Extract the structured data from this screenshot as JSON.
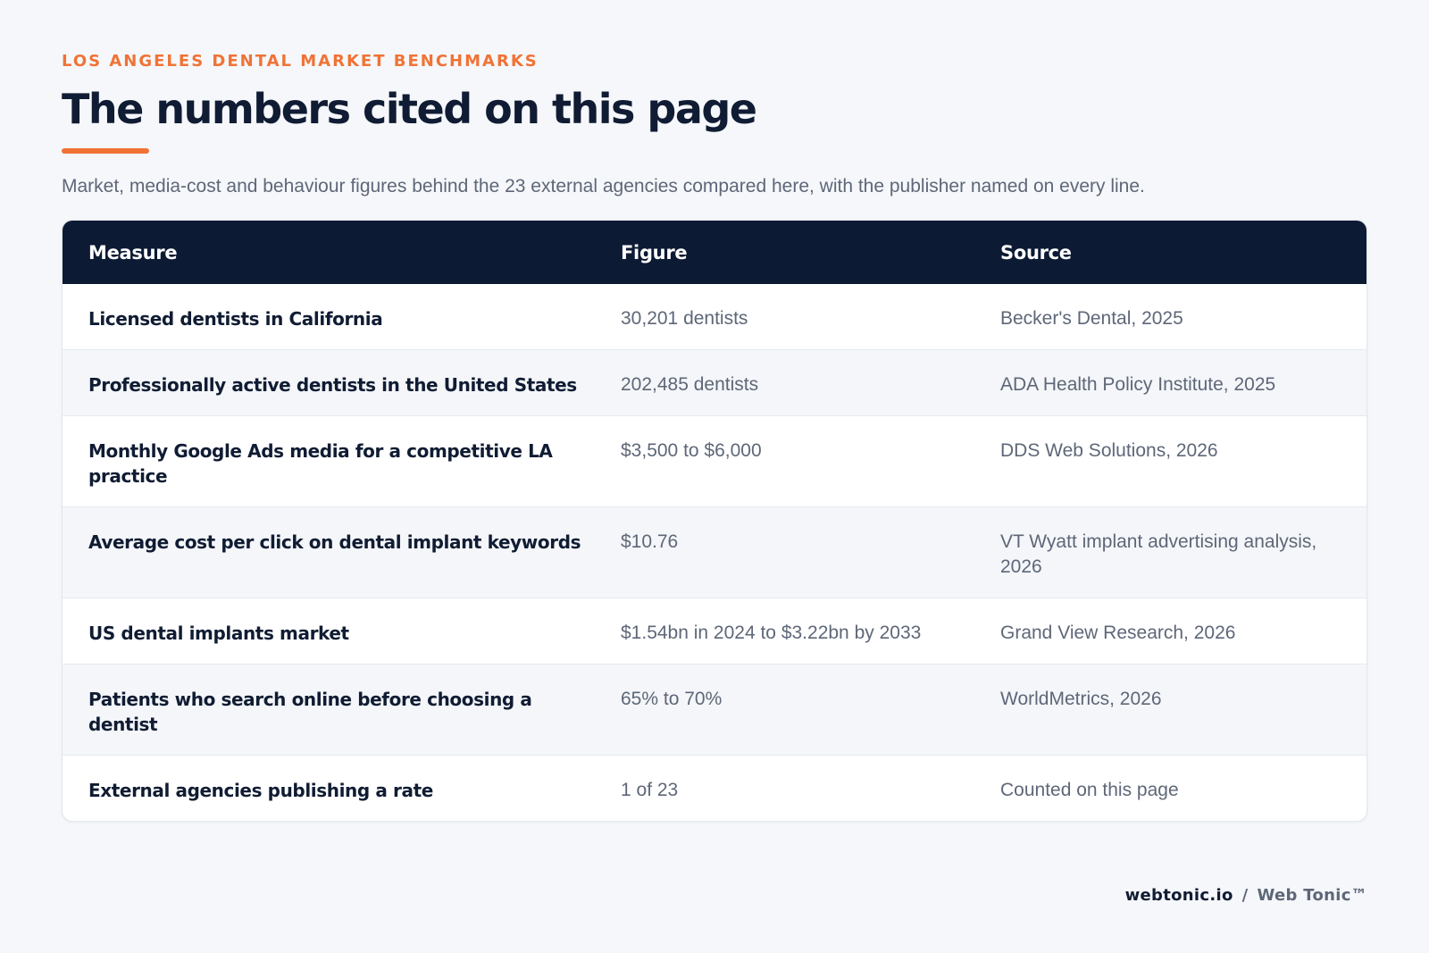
{
  "header": {
    "eyebrow": "LOS ANGELES DENTAL MARKET BENCHMARKS",
    "title": "The numbers cited on this page",
    "subtitle": "Market, media-cost and behaviour figures behind the 23 external agencies compared here, with the publisher named on every line."
  },
  "table": {
    "columns": [
      "Measure",
      "Figure",
      "Source"
    ],
    "rows": [
      {
        "measure": "Licensed dentists in California",
        "figure": "30,201 dentists",
        "source": "Becker's Dental, 2025"
      },
      {
        "measure": "Professionally active dentists in the United States",
        "figure": "202,485 dentists",
        "source": "ADA Health Policy Institute, 2025"
      },
      {
        "measure": "Monthly Google Ads media for a competitive LA practice",
        "figure": "$3,500 to $6,000",
        "source": "DDS Web Solutions, 2026"
      },
      {
        "measure": "Average cost per click on dental implant keywords",
        "figure": "$10.76",
        "source": "VT Wyatt implant advertising analysis, 2026"
      },
      {
        "measure": "US dental implants market",
        "figure": "$1.54bn in 2024 to $3.22bn by 2033",
        "source": "Grand View Research, 2026"
      },
      {
        "measure": "Patients who search online before choosing a dentist",
        "figure": "65% to 70%",
        "source": "WorldMetrics, 2026"
      },
      {
        "measure": "External agencies publishing a rate",
        "figure": "1 of 23",
        "source": "Counted on this page"
      }
    ]
  },
  "footer": {
    "domain": "webtonic.io",
    "separator": "/",
    "brand": "Web Tonic™"
  },
  "colors": {
    "accent": "#f07336",
    "header_bg": "#0c1a33",
    "page_bg": "#f5f7fa"
  }
}
